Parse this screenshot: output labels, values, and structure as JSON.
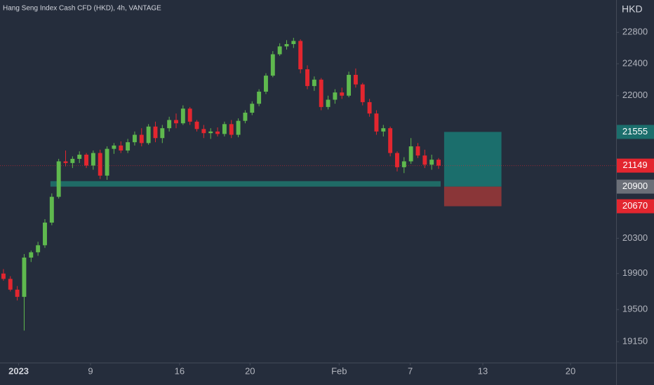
{
  "chart_data": {
    "type": "candlestick",
    "title": "Hang Seng Index Cash CFD (HKD), 4h, VANTAGE",
    "y_axis_label": "HKD",
    "log": true,
    "ylim": [
      18925,
      23220
    ],
    "yticks": [
      19150,
      19500,
      19900,
      20300,
      22000,
      22400,
      22800
    ],
    "xlim": [
      -0.5,
      88.7
    ],
    "xticks": [
      {
        "value": 2.2,
        "label": "2023"
      },
      {
        "value": 12.6,
        "label": "9"
      },
      {
        "value": 25.5,
        "label": "16"
      },
      {
        "value": 35.7,
        "label": "20"
      },
      {
        "value": 48.6,
        "label": "Feb"
      },
      {
        "value": 58.9,
        "label": "7"
      },
      {
        "value": 69.4,
        "label": "13"
      },
      {
        "value": 82.1,
        "label": "20"
      }
    ],
    "up_color": "#5fb94e",
    "down_color": "#e3262f",
    "open": [
      19900,
      19840,
      19720,
      19640,
      20080,
      20140,
      20220,
      20480,
      20780,
      21200,
      21180,
      21230,
      21280,
      21150,
      21300,
      21030,
      21350,
      21390,
      21330,
      21430,
      21520,
      21420,
      21620,
      21480,
      21600,
      21700,
      21660,
      21840,
      21680,
      21590,
      21540,
      21560,
      21530,
      21650,
      21520,
      21690,
      21790,
      21900,
      22050,
      22250,
      22520,
      22620,
      22650,
      22690,
      22330,
      22120,
      22200,
      21860,
      21950,
      22040,
      22000,
      22260,
      22140,
      21920,
      21780,
      21560,
      21600,
      21300,
      21130,
      21200,
      21380,
      21270,
      21160,
      21220
    ],
    "high": [
      19950,
      19870,
      19760,
      20120,
      20160,
      20260,
      20520,
      20820,
      21230,
      21330,
      21260,
      21320,
      21300,
      21330,
      21340,
      21380,
      21420,
      21440,
      21470,
      21560,
      21600,
      21650,
      21680,
      21640,
      21740,
      21780,
      21880,
      21860,
      21700,
      21640,
      21600,
      21610,
      21680,
      21700,
      21720,
      21820,
      21930,
      22080,
      22280,
      22560,
      22660,
      22700,
      22730,
      22710,
      22380,
      22240,
      22220,
      22000,
      22080,
      22100,
      22300,
      22340,
      22160,
      21960,
      21820,
      21640,
      21620,
      21320,
      21250,
      21480,
      21420,
      21340,
      21280,
      21240
    ],
    "low": [
      19820,
      19700,
      19600,
      19270,
      20030,
      20100,
      20190,
      20450,
      20760,
      21140,
      21120,
      21180,
      21120,
      21100,
      20990,
      20980,
      21290,
      21300,
      21300,
      21390,
      21380,
      21400,
      21430,
      21420,
      21560,
      21600,
      21640,
      21640,
      21560,
      21480,
      21470,
      21500,
      21500,
      21480,
      21490,
      21660,
      21760,
      21870,
      22020,
      22230,
      22500,
      22580,
      22600,
      22280,
      22080,
      22060,
      21820,
      21830,
      21900,
      21960,
      21980,
      22100,
      21880,
      21740,
      21520,
      21500,
      21260,
      21080,
      21060,
      21170,
      21240,
      21120,
      21100,
      21110
    ],
    "close": [
      19840,
      19720,
      19640,
      20080,
      20140,
      20220,
      20480,
      20780,
      21200,
      21180,
      21230,
      21280,
      21150,
      21300,
      21030,
      21350,
      21390,
      21330,
      21430,
      21520,
      21420,
      21620,
      21480,
      21600,
      21700,
      21660,
      21840,
      21680,
      21590,
      21540,
      21560,
      21530,
      21650,
      21520,
      21690,
      21790,
      21900,
      22050,
      22250,
      22520,
      22620,
      22650,
      22690,
      22330,
      22120,
      22200,
      21860,
      21950,
      22040,
      22000,
      22260,
      22140,
      21920,
      21780,
      21560,
      21600,
      21300,
      21130,
      21200,
      21380,
      21270,
      21160,
      21220,
      21149
    ],
    "zone": {
      "range": [
        20900,
        20965
      ],
      "x": [
        6.8,
        63.3
      ],
      "color": "#1f6b66"
    },
    "position": {
      "entry": 20900,
      "target": 21555,
      "stop": 20670,
      "x": [
        63.8,
        72.1
      ],
      "target_color": "#1b6e6c",
      "stop_color": "#8a3638",
      "entry_label_color": "#6b6f78"
    }
  }
}
